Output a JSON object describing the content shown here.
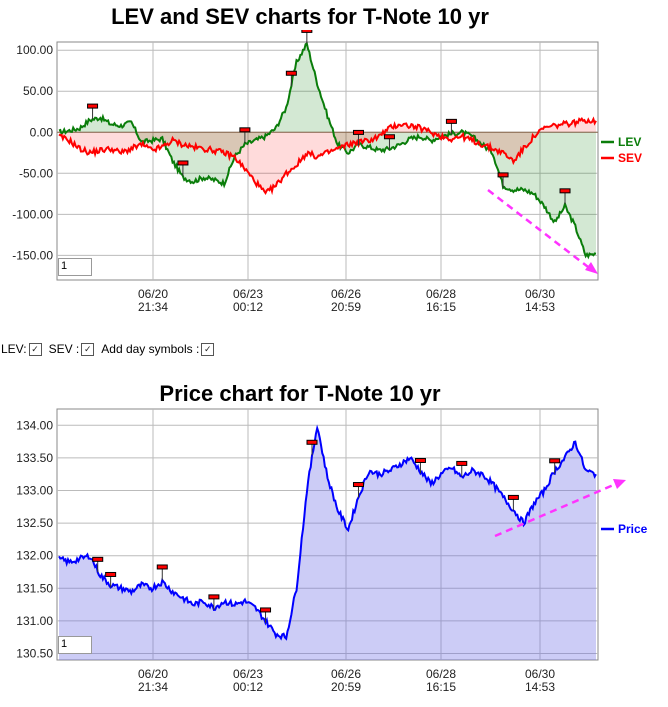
{
  "lev_sev": {
    "title": "LEV and SEV charts for T-Note 10 yr",
    "zoom_value": "1",
    "legend": [
      {
        "label": "LEV",
        "color": "#0a7d0a"
      },
      {
        "label": "SEV",
        "color": "#ff0000"
      }
    ],
    "y_ticks": [
      "100.00",
      "50.00",
      "0.00",
      "-50.00",
      "-100.00",
      "-150.00"
    ],
    "x_ticks": [
      {
        "date": "06/20",
        "time": "21:34"
      },
      {
        "date": "06/23",
        "time": "00:12"
      },
      {
        "date": "06/26",
        "time": "20:59"
      },
      {
        "date": "06/28",
        "time": "16:15"
      },
      {
        "date": "06/30",
        "time": "14:53"
      }
    ]
  },
  "controls": {
    "lev_label": "LEV:",
    "sev_label": "SEV :",
    "day_symbols_label": "Add day symbols :"
  },
  "price": {
    "title": "Price chart for T-Note 10 yr",
    "zoom_value": "1",
    "legend": [
      {
        "label": "Price",
        "color": "#0000ff"
      }
    ],
    "y_ticks": [
      "134.00",
      "133.50",
      "133.00",
      "132.50",
      "132.00",
      "131.50",
      "131.00",
      "130.50"
    ],
    "x_ticks": [
      {
        "date": "06/20",
        "time": "21:34"
      },
      {
        "date": "06/23",
        "time": "00:12"
      },
      {
        "date": "06/26",
        "time": "20:59"
      },
      {
        "date": "06/28",
        "time": "16:15"
      },
      {
        "date": "06/30",
        "time": "14:53"
      }
    ]
  },
  "chart_data": [
    {
      "type": "line",
      "title": "LEV and SEV charts for T-Note 10 yr",
      "ylim": [
        -180,
        110
      ],
      "x_tick_labels": [
        "06/20 21:34",
        "06/23 00:12",
        "06/26 20:59",
        "06/28 16:15",
        "06/30 14:53"
      ],
      "series": [
        {
          "name": "LEV",
          "color": "#0a7d0a",
          "values": [
            0,
            2,
            5,
            15,
            18,
            10,
            8,
            12,
            -12,
            -10,
            -8,
            -35,
            -55,
            -60,
            -55,
            -58,
            -62,
            -30,
            -15,
            -10,
            -5,
            5,
            30,
            85,
            108,
            60,
            20,
            -15,
            -25,
            -15,
            -18,
            -22,
            -20,
            -15,
            -8,
            -5,
            -10,
            -5,
            -2,
            0,
            -5,
            -15,
            -25,
            -65,
            -70,
            -70,
            -75,
            -90,
            -110,
            -90,
            -115,
            -150,
            -148
          ]
        },
        {
          "name": "SEV",
          "color": "#ff0000",
          "values": [
            -5,
            -10,
            -20,
            -25,
            -22,
            -20,
            -25,
            -20,
            -15,
            -22,
            -18,
            -10,
            -15,
            -18,
            -20,
            -22,
            -25,
            -30,
            -45,
            -60,
            -75,
            -65,
            -50,
            -40,
            -25,
            -30,
            -25,
            -20,
            -15,
            -12,
            -10,
            -5,
            5,
            10,
            8,
            5,
            0,
            -5,
            -8,
            -5,
            -10,
            -15,
            -20,
            -25,
            -35,
            -20,
            -5,
            5,
            8,
            10,
            12,
            15,
            14
          ]
        }
      ]
    },
    {
      "type": "area",
      "title": "Price chart for T-Note 10 yr",
      "ylim": [
        130.4,
        134.25
      ],
      "x_tick_labels": [
        "06/20 21:34",
        "06/23 00:12",
        "06/26 20:59",
        "06/28 16:15",
        "06/30 14:53"
      ],
      "series": [
        {
          "name": "Price",
          "color": "#0000ff",
          "values": [
            131.95,
            131.9,
            131.95,
            132.0,
            131.7,
            131.55,
            131.5,
            131.45,
            131.55,
            131.5,
            131.6,
            131.45,
            131.35,
            131.25,
            131.3,
            131.2,
            131.3,
            131.25,
            131.3,
            131.2,
            131.0,
            130.8,
            130.75,
            131.5,
            133.0,
            134.0,
            133.2,
            132.7,
            132.4,
            132.9,
            133.3,
            133.25,
            133.3,
            133.4,
            133.5,
            133.3,
            133.1,
            133.25,
            133.35,
            133.2,
            133.3,
            133.25,
            133.1,
            132.9,
            132.7,
            132.5,
            132.8,
            133.0,
            133.3,
            133.5,
            133.75,
            133.3,
            133.25
          ]
        }
      ]
    }
  ]
}
